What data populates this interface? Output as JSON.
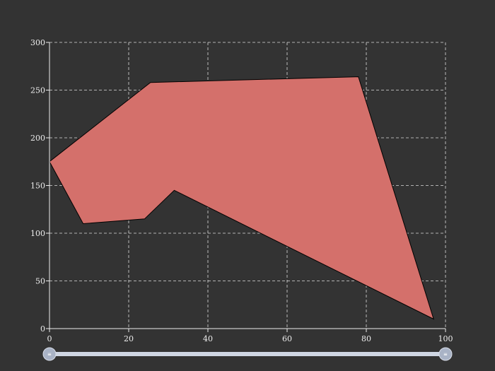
{
  "chart_data": {
    "type": "area",
    "title": "",
    "xlabel": "",
    "ylabel": "",
    "xlim": [
      0,
      100
    ],
    "ylim": [
      0,
      300
    ],
    "x_ticks": [
      0,
      20,
      40,
      60,
      80,
      100
    ],
    "y_ticks": [
      0,
      50,
      100,
      150,
      200,
      250,
      300
    ],
    "grid": true,
    "legend": "none",
    "series": [
      {
        "points": [
          [
            0,
            175
          ],
          [
            25.5,
            258
          ],
          [
            78,
            264
          ],
          [
            97,
            10
          ],
          [
            31.5,
            145
          ],
          [
            24,
            115
          ],
          [
            8.5,
            110
          ]
        ],
        "fill": "#d4706b",
        "stroke": "#000000"
      }
    ],
    "zoom_slider": {
      "start": 0,
      "end": 100
    }
  },
  "colors": {
    "background": "#333333",
    "fill": "#d4706b",
    "slider_track": "#cfd6e3",
    "slider_handle": "#a9b3c6"
  }
}
